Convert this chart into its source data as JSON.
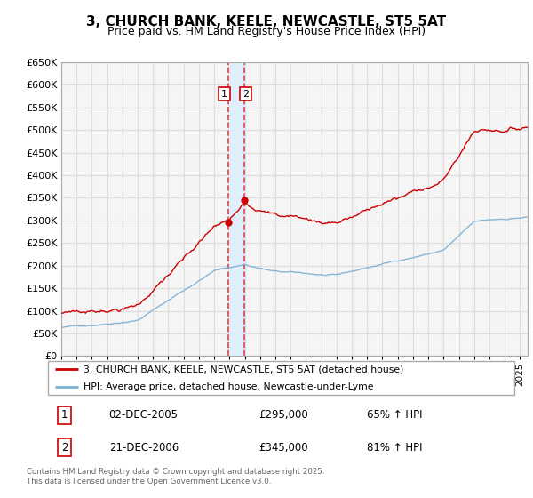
{
  "title": "3, CHURCH BANK, KEELE, NEWCASTLE, ST5 5AT",
  "subtitle": "Price paid vs. HM Land Registry's House Price Index (HPI)",
  "red_label": "3, CHURCH BANK, KEELE, NEWCASTLE, ST5 5AT (detached house)",
  "blue_label": "HPI: Average price, detached house, Newcastle-under-Lyme",
  "annotation1_date": "02-DEC-2005",
  "annotation1_price": "£295,000",
  "annotation1_hpi": "65% ↑ HPI",
  "annotation2_date": "21-DEC-2006",
  "annotation2_price": "£345,000",
  "annotation2_hpi": "81% ↑ HPI",
  "footer": "Contains HM Land Registry data © Crown copyright and database right 2025.\nThis data is licensed under the Open Government Licence v3.0.",
  "ylim": [
    0,
    650000
  ],
  "ytick_step": 50000,
  "xmin": 1995.0,
  "xmax": 2025.5,
  "red_color": "#cc0000",
  "blue_color": "#7bafd4",
  "vline_color": "#dd4444",
  "vspan_color": "#ddeeff",
  "bg_color": "#ffffff",
  "plot_bg": "#f5f5f5",
  "grid_color": "#dddddd",
  "sale1_x": 2005.92,
  "sale2_x": 2006.97,
  "sale1_y": 295000,
  "sale2_y": 345000
}
